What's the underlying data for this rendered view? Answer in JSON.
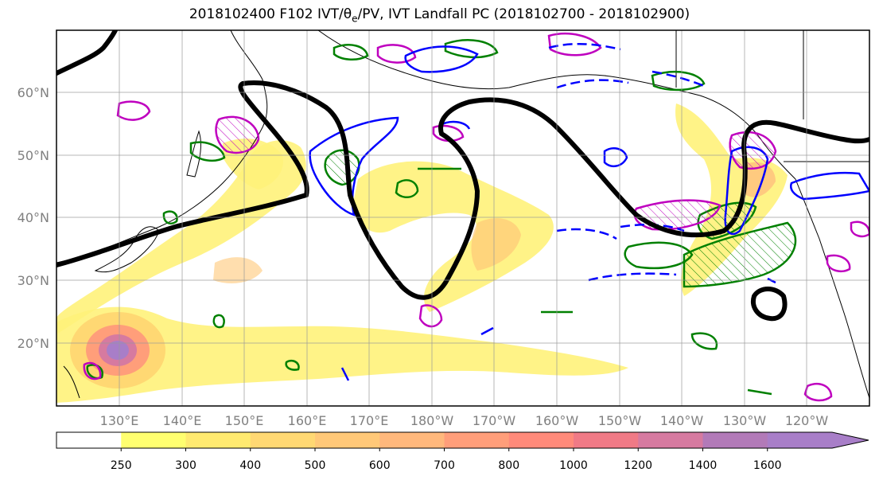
{
  "title": {
    "prefix": "2018102400 F102 IVT/",
    "theta": "θ",
    "theta_sub": "e",
    "suffix": "/PV, IVT Landfall PC (2018102700 - 2018102900)"
  },
  "map": {
    "lat_labels": [
      "20°N",
      "30°N",
      "40°N",
      "50°N",
      "60°N"
    ],
    "lon_labels": [
      "130°E",
      "140°E",
      "150°E",
      "160°E",
      "170°E",
      "180°W",
      "170°W",
      "160°W",
      "150°W",
      "140°W",
      "130°W",
      "120°W"
    ],
    "label_color": "#808080"
  },
  "colorbar": {
    "ticks": [
      "250",
      "300",
      "400",
      "500",
      "600",
      "700",
      "800",
      "1000",
      "1200",
      "1400",
      "1600"
    ],
    "colors": [
      "#ffffff",
      "#ffff70",
      "#ffea70",
      "#ffd873",
      "#ffc878",
      "#ffb87c",
      "#ff9e7a",
      "#ff8a7a",
      "#f07a86",
      "#d67aa0",
      "#b27ab8",
      "#a87ec8"
    ]
  },
  "legend_colors": {
    "theta_contour": "#000000",
    "pv_positive": "#bf00bf",
    "pv_contour": "#008000",
    "dashed_contour": "#0000ff"
  }
}
